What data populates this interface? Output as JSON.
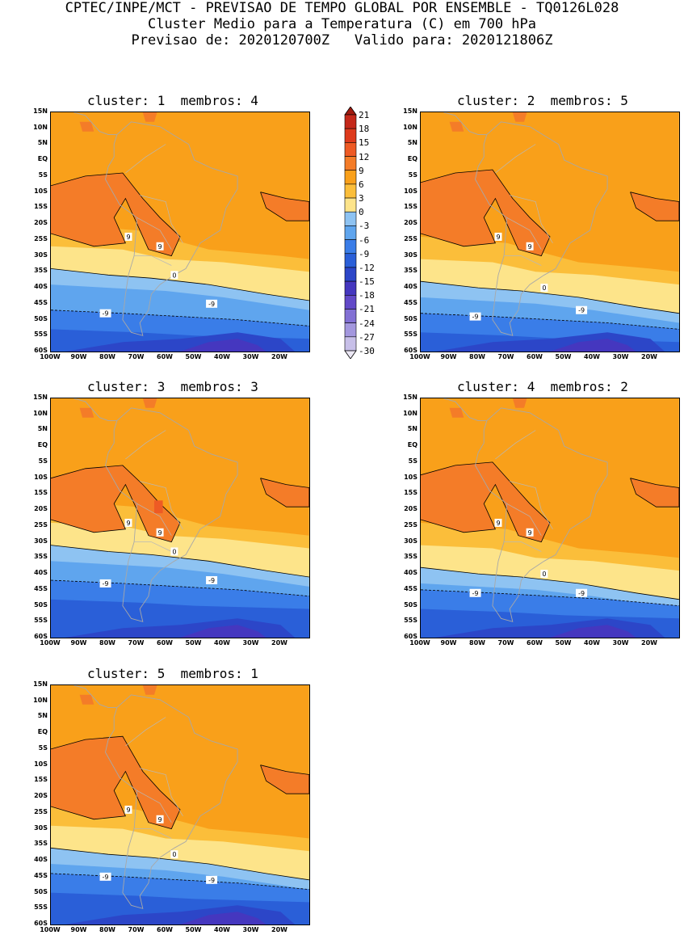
{
  "header": {
    "line1": "CPTEC/INPE/MCT - PREVISAO DE TEMPO GLOBAL POR ENSEMBLE - TQ0126L028",
    "line2": "Cluster Medio para a Temperatura (C) em 700 hPa",
    "line3": "Previsao de: 2020120700Z   Valido para: 2020121806Z"
  },
  "panels": [
    {
      "title": "cluster: 1  membros: 4"
    },
    {
      "title": "cluster: 2  membros: 5"
    },
    {
      "title": "cluster: 3  membros: 3"
    },
    {
      "title": "cluster: 4  membros: 2"
    },
    {
      "title": "cluster: 5  membros: 1"
    }
  ],
  "axes": {
    "lat_labels": [
      "15N",
      "10N",
      "5N",
      "EQ",
      "5S",
      "10S",
      "15S",
      "20S",
      "25S",
      "30S",
      "35S",
      "40S",
      "45S",
      "50S",
      "55S",
      "60S"
    ],
    "lon_labels": [
      "100W",
      "90W",
      "80W",
      "70W",
      "60W",
      "50W",
      "40W",
      "30W",
      "20W"
    ]
  },
  "colorbar": {
    "levels": [
      "21",
      "18",
      "15",
      "12",
      "9",
      "6",
      "3",
      "0",
      "-3",
      "-6",
      "-9",
      "-12",
      "-15",
      "-18",
      "-21",
      "-24",
      "-27",
      "-30"
    ],
    "colors": [
      "#a01a0f",
      "#c4281a",
      "#de3a1c",
      "#ee5a24",
      "#f47c28",
      "#f9a01a",
      "#fbbe3a",
      "#fde48a",
      "#8ec3f2",
      "#5fa5ee",
      "#3a7de8",
      "#2a5fd8",
      "#2c46c8",
      "#4537bf",
      "#6249c8",
      "#8270d4",
      "#a397de",
      "#c7bfe8",
      "#ece8f5"
    ]
  },
  "contour_labels": {
    "nine": "9",
    "zero": "0",
    "neg_nine": "-9"
  }
}
